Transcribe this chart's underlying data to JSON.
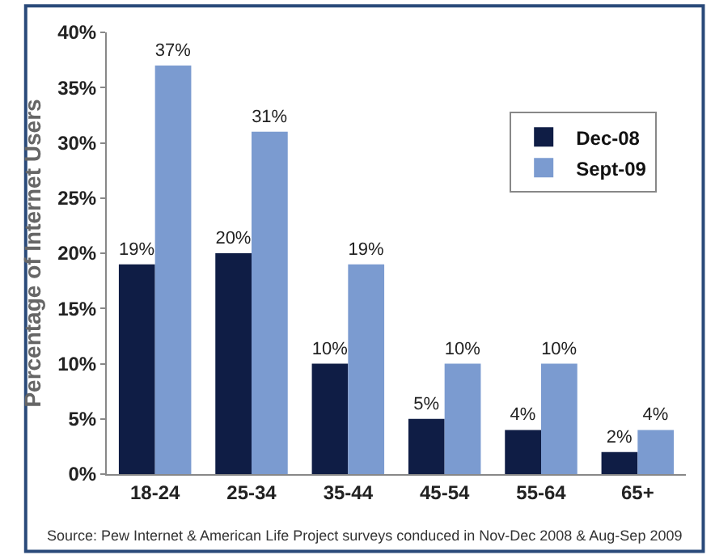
{
  "chart_data": {
    "type": "bar",
    "ylabel": "Percentage of Internet Users",
    "categories": [
      "18-24",
      "25-34",
      "35-44",
      "45-54",
      "55-64",
      "65+"
    ],
    "series": [
      {
        "name": "Dec-08",
        "color": "#0f1d45",
        "values": [
          19,
          20,
          10,
          5,
          4,
          2
        ],
        "value_labels": [
          "19%",
          "20%",
          "10%",
          "5%",
          "4%",
          "2%"
        ]
      },
      {
        "name": "Sept-09",
        "color": "#7b9bd0",
        "values": [
          37,
          31,
          19,
          10,
          10,
          4
        ],
        "value_labels": [
          "37%",
          "31%",
          "19%",
          "10%",
          "10%",
          "4%"
        ]
      }
    ],
    "ylim": [
      0,
      40
    ],
    "yticks": [
      {
        "value": 0,
        "label": "0%"
      },
      {
        "value": 5,
        "label": "5%"
      },
      {
        "value": 10,
        "label": "10%"
      },
      {
        "value": 15,
        "label": "15%"
      },
      {
        "value": 20,
        "label": "20%"
      },
      {
        "value": 25,
        "label": "25%"
      },
      {
        "value": 30,
        "label": "30%"
      },
      {
        "value": 35,
        "label": "35%"
      },
      {
        "value": 40,
        "label": "40%"
      }
    ],
    "grid": false,
    "legend": "top right",
    "annotations": [
      "Source: Pew Internet & American Life Project surveys conduced in Nov-Dec 2008 & Aug-Sep 2009"
    ]
  }
}
